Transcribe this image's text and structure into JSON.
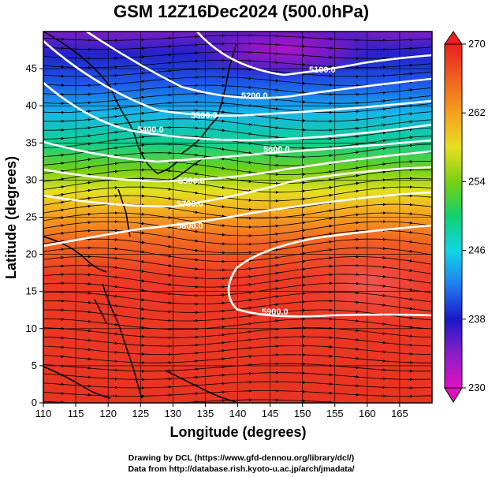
{
  "title": "GSM 12Z16Dec2024 (500.0hPa)",
  "xlabel": "Longitude (degrees)",
  "ylabel": "Latitude (degrees)",
  "credits": [
    "Drawing by DCL (https://www.gfd-dennou.org/library/dcl/)",
    "Data from http://database.rish.kyoto-u.ac.jp/arch/jmadata/"
  ],
  "map": {
    "lon_range": [
      110,
      170
    ],
    "lat_range": [
      0,
      50
    ],
    "lon_ticks": [
      "110",
      "115",
      "120",
      "125",
      "130",
      "135",
      "140",
      "145",
      "150",
      "155",
      "160",
      "165"
    ],
    "lat_ticks": [
      "0",
      "5",
      "10",
      "15",
      "20",
      "25",
      "30",
      "35",
      "40",
      "45"
    ],
    "contours": [
      {
        "label": "5100.0",
        "level": 5100
      },
      {
        "label": "5200.0",
        "level": 5200
      },
      {
        "label": "5300.0",
        "level": 5300
      },
      {
        "label": "5400.0",
        "level": 5400
      },
      {
        "label": "5500.0",
        "level": 5500
      },
      {
        "label": "5600.0",
        "level": 5600
      },
      {
        "label": "5700.0",
        "level": 5700
      },
      {
        "label": "5800.0",
        "level": 5800
      },
      {
        "label": "5900.0",
        "level": 5900
      }
    ]
  },
  "colorbar": {
    "min": 230,
    "max": 270,
    "tick_labels": [
      "270",
      "262",
      "254",
      "246",
      "238",
      "230"
    ],
    "colors": [
      "#e010c0",
      "#8a1fc8",
      "#1a18c8",
      "#1f7ef0",
      "#10d6e6",
      "#10d070",
      "#7ad010",
      "#e8e020",
      "#f5a020",
      "#f06020",
      "#e82020"
    ]
  }
}
